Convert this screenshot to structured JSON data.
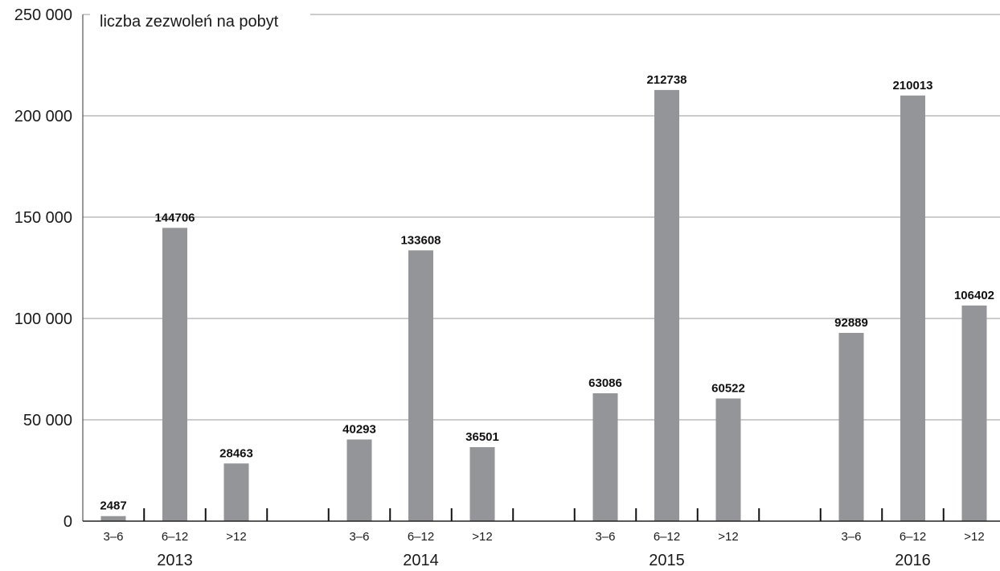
{
  "chart_data": {
    "type": "bar",
    "ylabel": "liczba zezwoleń na pobyt",
    "ylim": [
      0,
      250000
    ],
    "yticks": [
      0,
      50000,
      100000,
      150000,
      200000,
      250000
    ],
    "ytick_labels": [
      "0",
      "50 000",
      "100 000",
      "150 000",
      "200 000",
      "250 000"
    ],
    "grid": true,
    "bar_color": "#939598",
    "groups": [
      {
        "label": "2013",
        "categories": [
          "3–6",
          "6–12",
          ">12"
        ],
        "values": [
          2487,
          144706,
          28463
        ]
      },
      {
        "label": "2014",
        "categories": [
          "3–6",
          "6–12",
          ">12"
        ],
        "values": [
          40293,
          133608,
          36501
        ]
      },
      {
        "label": "2015",
        "categories": [
          "3–6",
          "6–12",
          ">12"
        ],
        "values": [
          63086,
          212738,
          60522
        ]
      },
      {
        "label": "2016",
        "categories": [
          "3–6",
          "6–12",
          ">12"
        ],
        "values": [
          92889,
          210013,
          106402
        ]
      }
    ]
  }
}
